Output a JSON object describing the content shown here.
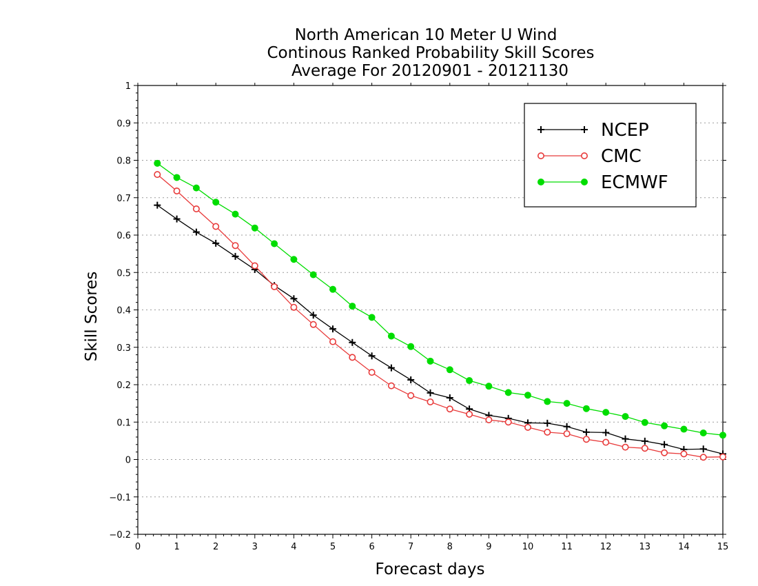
{
  "chart_data": {
    "type": "line",
    "title": [
      "North American 10 Meter U Wind",
      "Continous Ranked Probability Skill Scores",
      "Average For 20120901 - 20121130"
    ],
    "xlabel": "Forecast days",
    "ylabel": "Skill Scores",
    "xlim": [
      0,
      15
    ],
    "ylim": [
      -0.2,
      1
    ],
    "xticks": [
      0,
      1,
      2,
      3,
      4,
      5,
      6,
      7,
      8,
      9,
      10,
      11,
      12,
      13,
      14,
      15
    ],
    "yticks": [
      -0.2,
      -0.1,
      0,
      0.1,
      0.2,
      0.3,
      0.4,
      0.5,
      0.6,
      0.7,
      0.8,
      0.9,
      1
    ],
    "ytick_labels": [
      "−0.2",
      "−0.1",
      "0",
      "0.1",
      "0.2",
      "0.3",
      "0.4",
      "0.5",
      "0.6",
      "0.7",
      "0.8",
      "0.9",
      "1"
    ],
    "grid": true,
    "legend_position": "top-right",
    "x": [
      0.5,
      1,
      1.5,
      2,
      2.5,
      3,
      3.5,
      4,
      4.5,
      5,
      5.5,
      6,
      6.5,
      7,
      7.5,
      8,
      8.5,
      9,
      9.5,
      10,
      10.5,
      11,
      11.5,
      12,
      12.5,
      13,
      13.5,
      14,
      14.5,
      15
    ],
    "series": [
      {
        "name": "NCEP",
        "color": "#000000",
        "marker": "plus",
        "values": [
          0.68,
          0.643,
          0.608,
          0.578,
          0.543,
          0.508,
          0.465,
          0.43,
          0.386,
          0.349,
          0.313,
          0.277,
          0.245,
          0.213,
          0.178,
          0.165,
          0.135,
          0.118,
          0.11,
          0.098,
          0.097,
          0.088,
          0.073,
          0.072,
          0.055,
          0.049,
          0.04,
          0.027,
          0.028,
          0.015
        ]
      },
      {
        "name": "CMC",
        "color": "#e83a3a",
        "marker": "open-circle",
        "values": [
          0.762,
          0.718,
          0.67,
          0.623,
          0.572,
          0.518,
          0.462,
          0.407,
          0.361,
          0.315,
          0.273,
          0.233,
          0.197,
          0.171,
          0.154,
          0.135,
          0.121,
          0.106,
          0.1,
          0.086,
          0.073,
          0.069,
          0.054,
          0.046,
          0.033,
          0.03,
          0.018,
          0.015,
          0.006,
          0.007
        ]
      },
      {
        "name": "ECMWF",
        "color": "#00dd00",
        "marker": "filled-circle",
        "values": [
          0.792,
          0.754,
          0.726,
          0.688,
          0.656,
          0.619,
          0.577,
          0.535,
          0.494,
          0.455,
          0.41,
          0.38,
          0.33,
          0.302,
          0.263,
          0.24,
          0.211,
          0.196,
          0.179,
          0.172,
          0.155,
          0.15,
          0.136,
          0.126,
          0.115,
          0.099,
          0.09,
          0.081,
          0.071,
          0.065
        ]
      }
    ]
  }
}
